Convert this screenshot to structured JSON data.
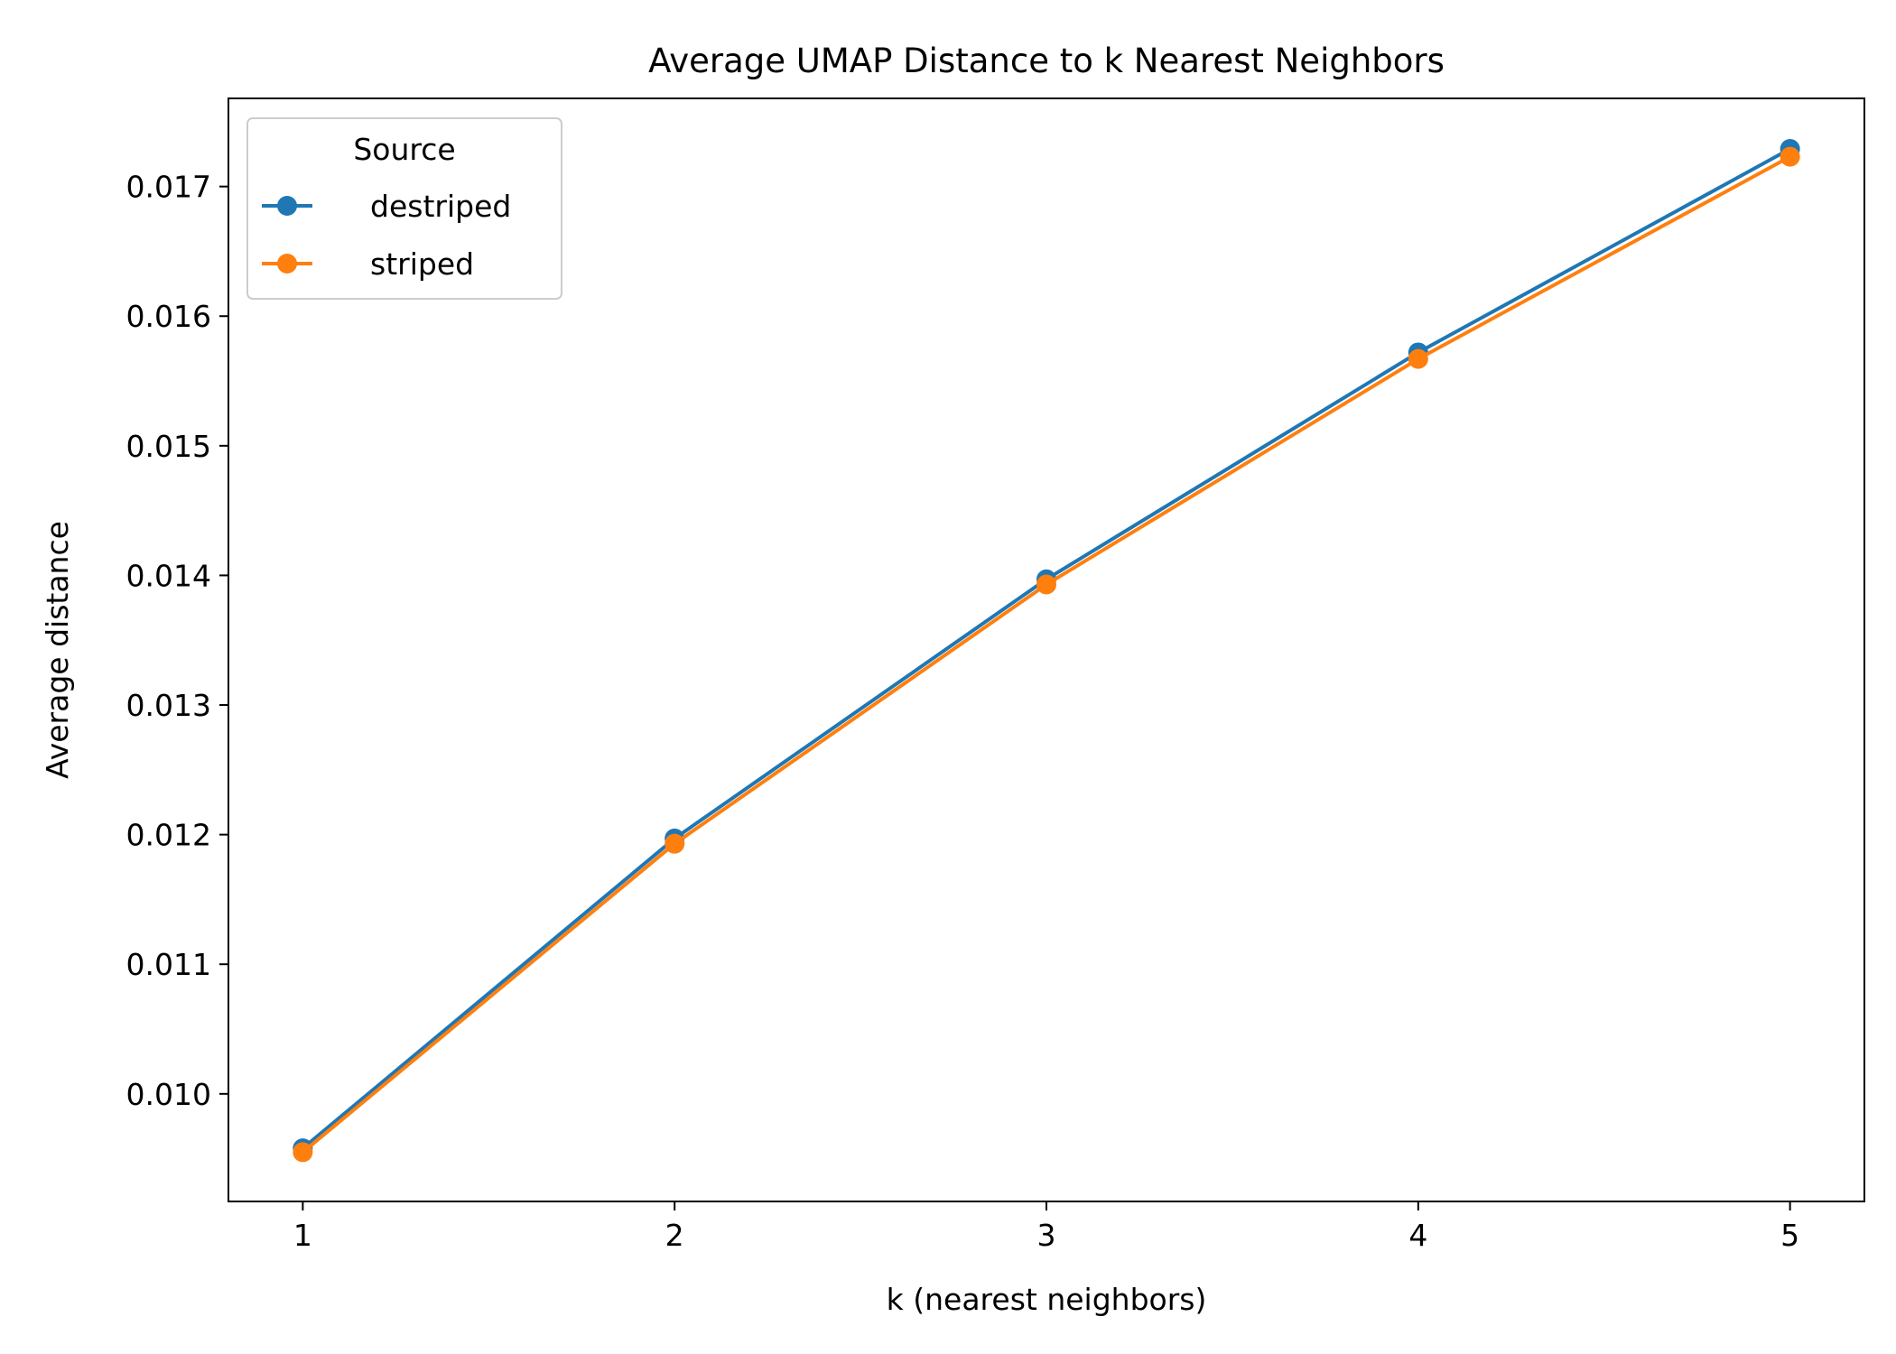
{
  "chart_data": {
    "type": "line",
    "title": "Average UMAP Distance to k Nearest Neighbors",
    "xlabel": "k (nearest neighbors)",
    "ylabel": "Average distance",
    "x": [
      1,
      2,
      3,
      4,
      5
    ],
    "x_ticks": [
      "1",
      "2",
      "3",
      "4",
      "5"
    ],
    "y_ticks": [
      "0.010",
      "0.011",
      "0.012",
      "0.013",
      "0.014",
      "0.015",
      "0.016",
      "0.017"
    ],
    "y_tick_values": [
      0.01,
      0.011,
      0.012,
      0.013,
      0.014,
      0.015,
      0.016,
      0.017
    ],
    "xlim": [
      0.8,
      5.2
    ],
    "ylim": [
      0.00917,
      0.01768
    ],
    "grid": false,
    "legend": {
      "title": "Source",
      "placement": "upper-left"
    },
    "series": [
      {
        "name": "destriped",
        "color": "#1f77b4",
        "marker": "circle",
        "values": [
          0.00958,
          0.01197,
          0.01397,
          0.01572,
          0.01729
        ]
      },
      {
        "name": "striped",
        "color": "#ff7f0e",
        "marker": "circle",
        "values": [
          0.00955,
          0.01193,
          0.01393,
          0.01567,
          0.01723
        ]
      }
    ]
  }
}
